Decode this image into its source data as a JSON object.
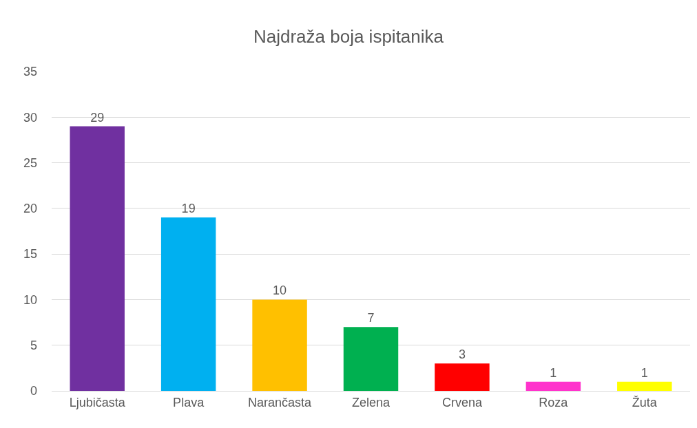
{
  "chart_data": {
    "type": "bar",
    "title": "Najdraža boja ispitanika",
    "categories": [
      "Ljubičasta",
      "Plava",
      "Narančasta",
      "Zelena",
      "Crvena",
      "Roza",
      "Žuta"
    ],
    "values": [
      29,
      19,
      10,
      7,
      3,
      1,
      1
    ],
    "colors": [
      "#7030a0",
      "#00b0f0",
      "#ffc000",
      "#00b050",
      "#ff0000",
      "#ff33cc",
      "#ffff00"
    ],
    "ylim": [
      0,
      35
    ],
    "yticks": [
      0,
      5,
      10,
      15,
      20,
      25,
      30,
      35
    ],
    "grid": "y",
    "data_labels": true,
    "legend": false
  }
}
